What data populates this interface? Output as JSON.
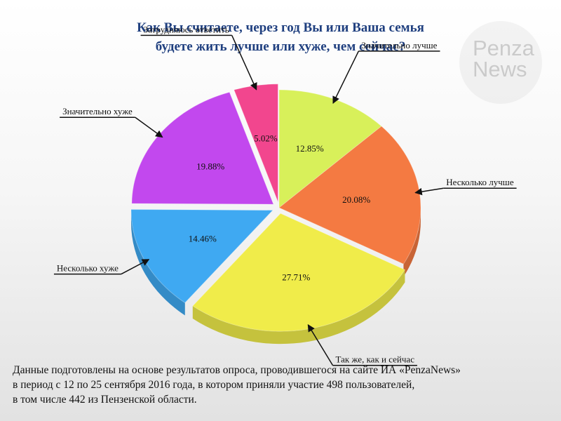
{
  "title_lines": [
    "Как Вы считаете, через год Вы или Ваша семья",
    "будете жить лучше или хуже, чем сейчас?"
  ],
  "watermark": {
    "line1": "Penza",
    "line2": "News"
  },
  "chart_data": {
    "type": "pie",
    "title": "Как Вы считаете, через год Вы или Ваша семья будете жить лучше или хуже, чем сейчас?",
    "unit": "%",
    "slices": [
      {
        "label": "Значительно лучше",
        "value": 12.85,
        "value_label": "12.85%",
        "color": "#d8f05a"
      },
      {
        "label": "Несколько лучше",
        "value": 20.08,
        "value_label": "20.08%",
        "color": "#f47a42"
      },
      {
        "label": "Так же, как и сейчас",
        "value": 27.71,
        "value_label": "27.71%",
        "color": "#f0ec4a"
      },
      {
        "label": "Несколько хуже",
        "value": 14.46,
        "value_label": "14.46%",
        "color": "#3fa9f2"
      },
      {
        "label": "Значительно хуже",
        "value": 19.88,
        "value_label": "19.88%",
        "color": "#c248ee"
      },
      {
        "label": "Затрудняюсь ответить",
        "value": 5.02,
        "value_label": "5.02%",
        "color": "#f2468e"
      }
    ],
    "exploded_slices": [
      "Затрудняюсь ответить",
      "Значительно хуже",
      "Несколько хуже",
      "Так же, как и сейчас"
    ],
    "legend": "callout labels around pie",
    "style": "3d"
  },
  "footer_lines": [
    "Данные подготовлены на основе результатов опроса, проводившегося на сайте ИА «PenzaNews»",
    "в период с 12 по 25 сентября 2016 года, в котором приняли участие 498 пользователей,",
    "в том числе 442 из Пензенской области."
  ]
}
